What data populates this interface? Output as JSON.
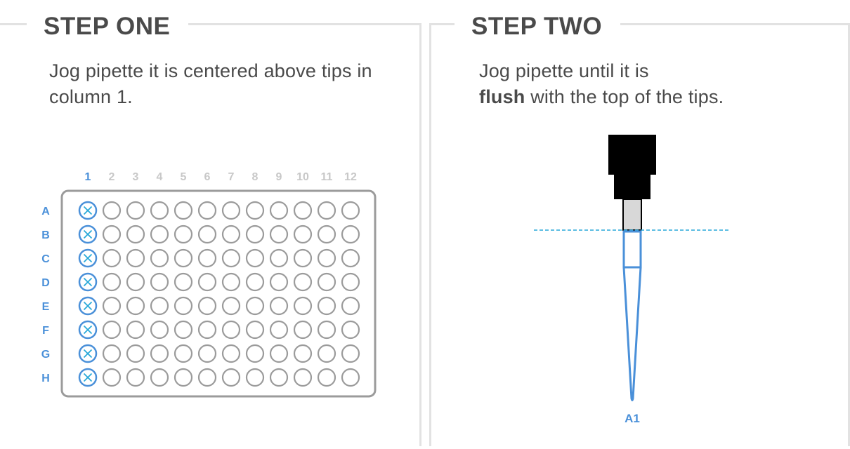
{
  "step_one": {
    "title": "STEP ONE",
    "instruction": "Jog pipette it is centered above tips in column 1."
  },
  "step_two": {
    "title": "STEP TWO",
    "instruction_prefix": "Jog pipette until it is",
    "instruction_bold": "flush",
    "instruction_suffix": "with the top of the tips."
  },
  "plate": {
    "columns": [
      "1",
      "2",
      "3",
      "4",
      "5",
      "6",
      "7",
      "8",
      "9",
      "10",
      "11",
      "12"
    ],
    "rows": [
      "A",
      "B",
      "C",
      "D",
      "E",
      "F",
      "G",
      "H"
    ],
    "highlighted_column": "1"
  },
  "pipette_diagram": {
    "tip_label": "A1"
  },
  "colors": {
    "accent_blue": "#4a90d9",
    "cyan_line": "#28a9d8",
    "gray_well": "#9b9b9b",
    "light_gray_label": "#c8c8c8",
    "border_gray": "#e2e2e2",
    "text_dark": "#4a4a4a",
    "pipette_black": "#000000",
    "tip_body_gray": "#d8d8d8"
  }
}
